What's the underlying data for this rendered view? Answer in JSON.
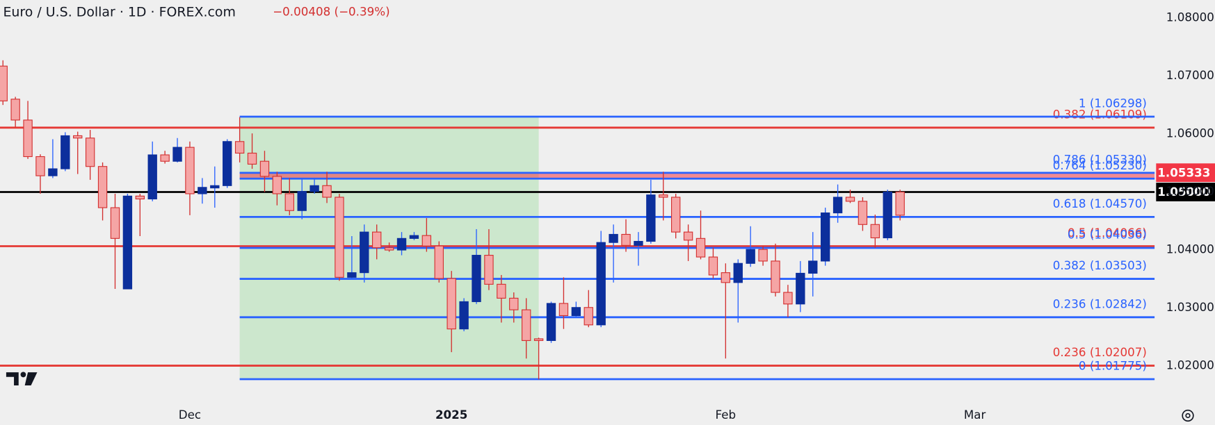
{
  "chart_data": {
    "type": "candlestick",
    "title": "Euro / U.S. Dollar · 1D · FOREX.com",
    "change": "−0.00408 (−0.39%)",
    "categories": [
      null,
      null,
      null,
      null,
      null,
      null,
      null,
      null,
      null,
      null,
      null,
      null,
      null,
      null,
      null,
      "Dec",
      null,
      null,
      null,
      null,
      null,
      null,
      null,
      null,
      null,
      null,
      null,
      null,
      null,
      null,
      null,
      null,
      null,
      null,
      null,
      null,
      "2025",
      null,
      null,
      null,
      null,
      null,
      null,
      null,
      null,
      null,
      null,
      null,
      null,
      null,
      null,
      null,
      null,
      null,
      null,
      null,
      null,
      null,
      "Feb",
      null,
      null,
      null,
      null,
      null,
      null,
      null,
      null,
      null,
      null,
      null,
      null,
      null,
      null,
      null,
      null,
      null,
      null,
      null,
      "Mar"
    ],
    "open": [
      1.0717,
      1.066,
      1.0624,
      1.0561,
      1.0528,
      1.054,
      1.0597,
      1.0593,
      1.0544,
      1.0473,
      1.0333,
      1.0493,
      1.0488,
      1.0564,
      1.0553,
      1.0577,
      1.0497,
      1.0507,
      1.0511,
      1.0587,
      1.0567,
      1.0553,
      1.0527,
      1.0497,
      1.0468,
      1.0501,
      1.0511,
      1.0491,
      1.0353,
      1.0361,
      1.0431,
      1.0404,
      1.04,
      1.042,
      1.0425,
      1.0407,
      1.0351,
      1.0264,
      1.0311,
      1.0391,
      1.0341,
      1.0317,
      1.0297,
      1.0247,
      1.0244,
      1.0308,
      1.0287,
      1.0301,
      1.0271,
      1.0413,
      1.0427,
      1.0408,
      1.0415,
      1.0495,
      1.0491,
      1.0431,
      1.042,
      1.0388,
      1.0361,
      1.0344,
      1.0377,
      1.0401,
      1.0381,
      1.0327,
      1.0307,
      1.036,
      1.0381,
      1.0464,
      1.0491,
      1.0484,
      1.0444,
      1.0421,
      1.05,
      null,
      null,
      null,
      null,
      null,
      null
    ],
    "high": [
      1.0727,
      1.0664,
      1.0657,
      1.0565,
      1.0591,
      1.0603,
      1.0604,
      1.0607,
      1.0551,
      1.0497,
      1.0497,
      1.0497,
      1.0587,
      1.0571,
      1.0593,
      1.0587,
      1.0524,
      1.0544,
      1.0591,
      1.0629,
      1.0601,
      1.0571,
      1.0535,
      1.0524,
      1.0524,
      1.0524,
      1.0535,
      1.0497,
      1.0424,
      1.0444,
      1.0444,
      1.0413,
      1.0431,
      1.0431,
      1.0455,
      1.0415,
      1.0364,
      1.0317,
      1.0436,
      1.0436,
      1.0357,
      1.0327,
      1.0317,
      1.0249,
      1.0311,
      1.0353,
      1.0311,
      1.0331,
      1.0433,
      1.0444,
      1.0453,
      1.0431,
      1.0521,
      1.0535,
      1.0497,
      1.0444,
      1.0468,
      1.0404,
      1.0377,
      1.0384,
      1.0441,
      1.0407,
      1.0411,
      1.034,
      1.0381,
      1.0431,
      1.0473,
      1.0513,
      1.0504,
      1.0491,
      1.0461,
      1.0504,
      1.0504,
      null,
      null,
      null,
      null,
      null,
      null
    ],
    "low": [
      1.065,
      1.0612,
      1.0557,
      1.0497,
      1.0524,
      1.0536,
      1.0531,
      1.0521,
      1.0451,
      1.0333,
      1.0333,
      1.0424,
      1.0484,
      1.0549,
      1.0551,
      1.046,
      1.048,
      1.0473,
      1.0507,
      1.0551,
      1.054,
      1.05,
      1.0477,
      1.046,
      1.0453,
      1.0497,
      1.0481,
      1.0347,
      1.0351,
      1.0344,
      1.0384,
      1.0397,
      1.0391,
      1.0417,
      1.0397,
      1.0344,
      1.0224,
      1.026,
      1.0307,
      1.0331,
      1.0275,
      1.0275,
      1.0213,
      1.0177,
      1.024,
      1.0264,
      1.0284,
      1.0267,
      1.0267,
      1.0344,
      1.0397,
      1.0373,
      1.0411,
      1.0451,
      1.042,
      1.0381,
      1.0384,
      1.0351,
      1.0213,
      1.0275,
      1.0371,
      1.0373,
      1.032,
      1.0284,
      1.0293,
      1.032,
      1.0373,
      1.0447,
      1.0481,
      1.0433,
      1.0404,
      1.0417,
      1.0451,
      null,
      null,
      null,
      null,
      null,
      null
    ],
    "close": [
      1.0657,
      1.0624,
      1.0561,
      1.0528,
      1.054,
      1.0597,
      1.0593,
      1.0544,
      1.0473,
      1.042,
      1.0493,
      1.0488,
      1.0564,
      1.0553,
      1.0577,
      1.0497,
      1.0508,
      1.0511,
      1.0587,
      1.0567,
      1.0548,
      1.0527,
      1.0497,
      1.0468,
      1.0501,
      1.0511,
      1.0491,
      1.0353,
      1.0361,
      1.0431,
      1.0404,
      1.04,
      1.042,
      1.0425,
      1.0407,
      1.0351,
      1.0264,
      1.0311,
      1.0391,
      1.0341,
      1.0317,
      1.0297,
      1.0244,
      1.0244,
      1.0308,
      1.0287,
      1.0301,
      1.0271,
      1.0413,
      1.0427,
      1.0408,
      1.0415,
      1.0495,
      1.0491,
      1.0431,
      1.0417,
      1.0388,
      1.0357,
      1.0344,
      1.0377,
      1.0401,
      1.0381,
      1.0327,
      1.0307,
      1.036,
      1.0381,
      1.0464,
      1.0491,
      1.0484,
      1.0444,
      1.0421,
      1.05,
      1.046,
      null,
      null,
      null,
      null,
      null,
      null
    ],
    "up_color": "#0c2f9c",
    "down_color": "#f5a5a5",
    "down_border": "#d32f2f",
    "ylim": [
      1.0144,
      1.08307
    ],
    "yticks": [
      {
        "value": 1.02,
        "label": "1.02000"
      },
      {
        "value": 1.03,
        "label": "1.03000"
      },
      {
        "value": 1.04,
        "label": "1.04000"
      },
      {
        "value": 1.05,
        "label": "1.05000"
      },
      {
        "value": 1.06,
        "label": "1.06000"
      },
      {
        "value": 1.07,
        "label": "1.07000"
      },
      {
        "value": 1.08,
        "label": "1.08000"
      }
    ],
    "grid": false,
    "fib": {
      "color": "#2962ff",
      "shade_color": "#c8e6c9",
      "levels": [
        {
          "value": 1.06298,
          "label": "1 (1.06298)"
        },
        {
          "value": 1.0533,
          "label": "0.786 (1.05330)"
        },
        {
          "value": 1.0523,
          "label": "0.764 (1.05230)"
        },
        {
          "value": 1.0457,
          "label": "0.618 (1.04570)"
        },
        {
          "value": 1.04036,
          "label": "0.5 (1.04036)"
        },
        {
          "value": 1.03503,
          "label": "0.382 (1.03503)"
        },
        {
          "value": 1.02842,
          "label": "0.236 (1.02842)"
        },
        {
          "value": 1.01775,
          "label": "0 (1.01775)"
        }
      ]
    },
    "red_levels": {
      "color": "#e53935",
      "levels": [
        {
          "value": 1.06109,
          "label": "0.382 (1.06109)"
        },
        {
          "value": 1.04066,
          "label": "0.5 (1.04066)"
        },
        {
          "value": 1.02007,
          "label": "0.236 (1.02007)"
        }
      ]
    },
    "zone": {
      "from": 1.0523,
      "to": 1.05333,
      "color": "#f23645"
    },
    "price_labels": [
      {
        "value": 1.05333,
        "label": "1.05333",
        "color": "#f23645"
      },
      {
        "value": 1.05,
        "label": "1.05000",
        "color": "#000000"
      }
    ]
  }
}
